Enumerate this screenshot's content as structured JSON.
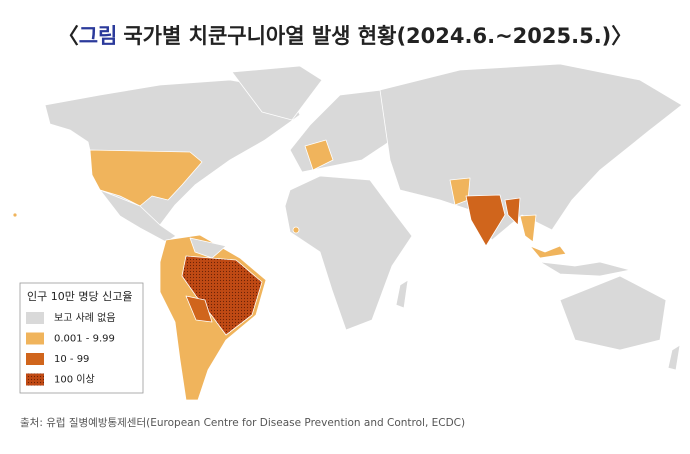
{
  "title": {
    "open": "〈",
    "label": "그림",
    "text": "국가별 치쿤구니아열 발생 현황(2024.6.~2025.5.)",
    "close": "〉",
    "label_color": "#2b3a9b"
  },
  "legend": {
    "title": "인구 10만 명당 신고율",
    "items": [
      {
        "label": "보고 사례 없음",
        "color": "#d9d9d9"
      },
      {
        "label": "0.001 - 9.99",
        "color": "#f0b45c"
      },
      {
        "label": "10 - 99",
        "color": "#d0651c"
      },
      {
        "label": "100 이상",
        "color": "#c04a14"
      }
    ]
  },
  "source": "출처: 유럽 질병예방통제센터(European Centre for Disease Prevention and Control, ECDC)"
}
